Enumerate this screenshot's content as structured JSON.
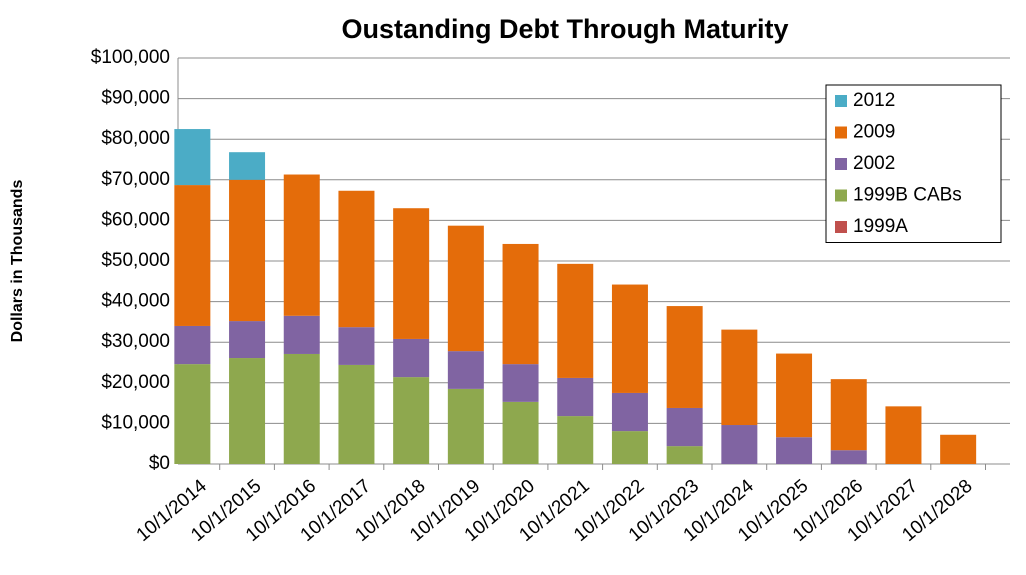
{
  "chart_data": {
    "type": "stacked_bar",
    "title": "Oustanding Debt Through Maturity",
    "y_label": "Dollars in Thousands",
    "categories": [
      "10/1/2014",
      "10/1/2015",
      "10/1/2016",
      "10/1/2017",
      "10/1/2018",
      "10/1/2019",
      "10/1/2020",
      "10/1/2021",
      "10/1/2022",
      "10/1/2023",
      "10/1/2024",
      "10/1/2025",
      "10/1/2026",
      "10/1/2027",
      "10/1/2028"
    ],
    "series": [
      {
        "name": "2012",
        "color": "#4bacc6",
        "values": [
          13800,
          6800,
          0,
          0,
          0,
          0,
          0,
          0,
          0,
          0,
          0,
          0,
          0,
          0,
          0
        ]
      },
      {
        "name": "2009",
        "color": "#e46c0a",
        "values": [
          34700,
          34800,
          34800,
          33600,
          32200,
          30900,
          29600,
          28100,
          26700,
          25100,
          23500,
          20600,
          17500,
          14200,
          7200
        ]
      },
      {
        "name": "2002",
        "color": "#8064a2",
        "values": [
          9400,
          9100,
          9400,
          9300,
          9400,
          9300,
          9300,
          9400,
          9400,
          9400,
          9600,
          6600,
          3400,
          0,
          0
        ]
      },
      {
        "name": "1999B CABs",
        "color": "#8ea84e",
        "values": [
          24600,
          26100,
          27100,
          24400,
          21400,
          18500,
          15300,
          11800,
          8100,
          4400,
          0,
          0,
          0,
          0,
          0
        ]
      },
      {
        "name": "1999A",
        "color": "#c0504d",
        "values": [
          0,
          0,
          0,
          0,
          0,
          0,
          0,
          0,
          0,
          0,
          0,
          0,
          0,
          0,
          0
        ]
      }
    ],
    "ylim": [
      0,
      100000
    ],
    "yticks": [
      {
        "value": 0,
        "label": "$0"
      },
      {
        "value": 10000,
        "label": "$10,000"
      },
      {
        "value": 20000,
        "label": "$20,000"
      },
      {
        "value": 30000,
        "label": "$30,000"
      },
      {
        "value": 40000,
        "label": "$40,000"
      },
      {
        "value": 50000,
        "label": "$50,000"
      },
      {
        "value": 60000,
        "label": "$60,000"
      },
      {
        "value": 70000,
        "label": "$70,000"
      },
      {
        "value": 80000,
        "label": "$80,000"
      },
      {
        "value": 90000,
        "label": "$90,000"
      },
      {
        "value": 100000,
        "label": "$100,000"
      }
    ],
    "grid": true,
    "legend": "top-right"
  }
}
